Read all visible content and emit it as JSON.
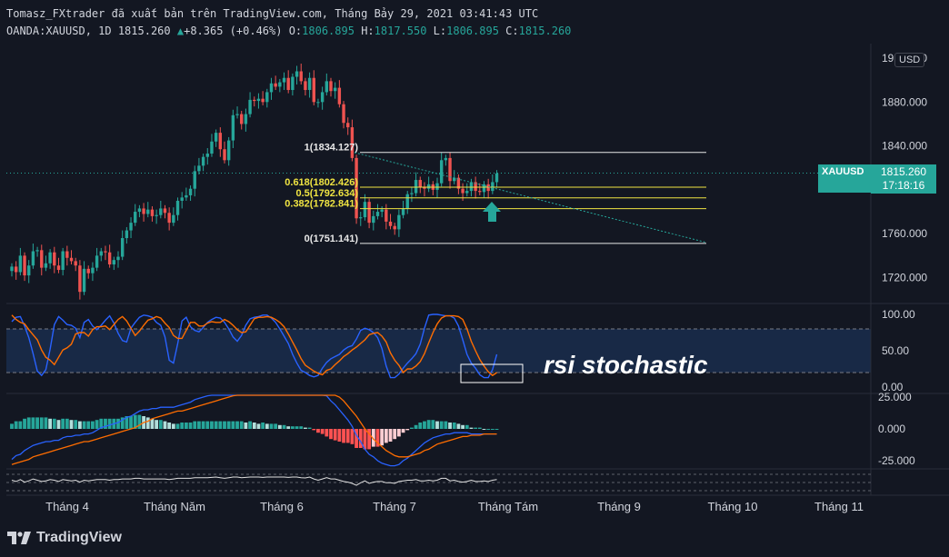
{
  "header": {
    "line1": "Tomasz_FXtrader đã xuất bản trên TradingView.com, Tháng Bảy 29, 2021 03:41:43 UTC",
    "symbol": "OANDA:XAUUSD, 1D",
    "last": "1815.260",
    "change": "+8.365 (+0.46%)",
    "o_label": "O:",
    "o": "1806.895",
    "h_label": "H:",
    "h": "1817.550",
    "l_label": "L:",
    "l": "1806.895",
    "c_label": "C:",
    "c": "1815.260"
  },
  "currency": "USD",
  "price_tag": {
    "symbol": "XAUUSD",
    "price": "1815.260",
    "countdown": "17:18:16"
  },
  "annotation": "rsi stochastic",
  "brand": "TradingView",
  "colors": {
    "bg": "#131722",
    "up": "#26a69a",
    "down": "#ef5350",
    "fib": "#f0e442",
    "k": "#2962ff",
    "d": "#ff6d00"
  },
  "chart_data": [
    {
      "type": "candlestick",
      "symbol": "XAUUSD",
      "interval": "1D",
      "y_ticks": [
        "1920.000",
        "1880.000",
        "1840.000",
        "1800.000",
        "1760.000",
        "1720.000"
      ],
      "ylim": [
        1693,
        1927
      ],
      "x_ticks": [
        "Tháng 4",
        "Tháng Năm",
        "Tháng 6",
        "Tháng 7",
        "Tháng Tám",
        "Tháng 9",
        "Tháng 10",
        "Tháng 11"
      ],
      "last_price": 1815.26,
      "closes": [
        1730,
        1725,
        1740,
        1722,
        1731,
        1744,
        1745,
        1729,
        1733,
        1743,
        1731,
        1727,
        1744,
        1738,
        1735,
        1731,
        1707,
        1728,
        1724,
        1729,
        1740,
        1744,
        1743,
        1732,
        1736,
        1739,
        1756,
        1763,
        1770,
        1780,
        1783,
        1778,
        1782,
        1776,
        1777,
        1783,
        1779,
        1770,
        1777,
        1790,
        1793,
        1795,
        1801,
        1817,
        1822,
        1830,
        1833,
        1844,
        1852,
        1837,
        1827,
        1845,
        1868,
        1869,
        1860,
        1869,
        1882,
        1881,
        1883,
        1880,
        1889,
        1897,
        1894,
        1898,
        1902,
        1891,
        1903,
        1908,
        1899,
        1891,
        1902,
        1880,
        1880,
        1889,
        1899,
        1890,
        1893,
        1878,
        1861,
        1857,
        1829,
        1774,
        1775,
        1789,
        1770,
        1776,
        1780,
        1782,
        1771,
        1767,
        1764,
        1777,
        1783,
        1796,
        1797,
        1809,
        1802,
        1801,
        1805,
        1800,
        1806,
        1827,
        1829,
        1808,
        1811,
        1801,
        1797,
        1799,
        1807,
        1799,
        1798,
        1805,
        1799,
        1807,
        1815
      ],
      "fib_levels": [
        {
          "label": "1(1834.127)",
          "value": 1834.127
        },
        {
          "label": "0.618(1802.426)",
          "value": 1802.426
        },
        {
          "label": "0.5(1792.634)",
          "value": 1792.634
        },
        {
          "label": "0.382(1782.841)",
          "value": 1782.841
        },
        {
          "label": "0(1751.141)",
          "value": 1751.141
        }
      ]
    },
    {
      "type": "line",
      "name": "stoch_rsi",
      "y_ticks": [
        "100.00",
        "50.00",
        "0.00"
      ],
      "ylim": [
        0,
        100
      ],
      "bands": [
        20,
        80
      ],
      "k": [
        90,
        96,
        97,
        84,
        68,
        46,
        22,
        16,
        24,
        52,
        86,
        97,
        92,
        86,
        85,
        81,
        68,
        89,
        93,
        84,
        79,
        85,
        92,
        98,
        88,
        74,
        64,
        62,
        81,
        89,
        96,
        99,
        98,
        96,
        89,
        85,
        69,
        37,
        33,
        60,
        91,
        96,
        83,
        78,
        76,
        82,
        89,
        93,
        96,
        95,
        89,
        80,
        69,
        63,
        71,
        85,
        94,
        96,
        97,
        99,
        99,
        95,
        89,
        80,
        70,
        60,
        45,
        33,
        23,
        20,
        16,
        14,
        16,
        26,
        34,
        39,
        42,
        45,
        51,
        55,
        57,
        66,
        78,
        81,
        79,
        75,
        68,
        53,
        29,
        13,
        13,
        18,
        26,
        33,
        39,
        46,
        59,
        81,
        99,
        100,
        100,
        99,
        98,
        98,
        95,
        84,
        65,
        45,
        33,
        26,
        17,
        13,
        13,
        24,
        45
      ],
      "d": [
        99,
        93,
        89,
        87,
        79,
        72,
        65,
        51,
        41,
        37,
        31,
        41,
        51,
        54,
        59,
        73,
        75,
        75,
        70,
        79,
        83,
        83,
        84,
        79,
        86,
        93,
        97,
        91,
        81,
        71,
        77,
        85,
        92,
        94,
        97,
        95,
        88,
        82,
        71,
        67,
        67,
        78,
        89,
        89,
        84,
        84,
        88,
        90,
        89,
        89,
        93,
        90,
        85,
        79,
        75,
        76,
        85,
        94,
        96,
        96,
        97,
        96,
        93,
        89,
        83,
        73,
        62,
        51,
        39,
        30,
        26,
        22,
        19,
        17,
        23,
        25,
        31,
        36,
        42,
        46,
        51,
        55,
        60,
        65,
        72,
        74,
        75,
        70,
        62,
        47,
        37,
        30,
        20,
        25,
        25,
        29,
        35,
        46,
        61,
        75,
        87,
        95,
        98,
        98,
        98,
        97,
        93,
        80,
        63,
        50,
        38,
        29,
        21,
        16,
        20
      ]
    },
    {
      "type": "line",
      "name": "macd",
      "y_ticks": [
        "25.000",
        "0.000",
        "-25.000"
      ],
      "ylim": [
        -30,
        25
      ],
      "macd": [
        -24,
        -21,
        -20,
        -17,
        -15,
        -13,
        -12,
        -11,
        -10,
        -10,
        -9,
        -9,
        -7,
        -6,
        -6,
        -5,
        -5,
        -4,
        -4,
        -3,
        -1,
        1,
        2,
        3,
        4,
        5,
        7,
        9,
        10,
        12,
        14,
        15,
        15,
        16,
        16,
        17,
        17,
        17,
        17,
        18,
        19,
        20,
        21,
        23,
        24,
        25,
        26,
        27,
        28,
        29,
        30,
        31,
        32,
        33,
        34,
        34,
        35,
        35,
        35,
        36,
        36,
        37,
        37,
        37,
        37,
        37,
        37,
        37,
        37,
        36,
        36,
        34,
        31,
        29,
        26,
        22,
        19,
        15,
        11,
        7,
        2,
        -5,
        -10,
        -16,
        -20,
        -22,
        -25,
        -27,
        -28,
        -29,
        -29,
        -28,
        -25,
        -23,
        -20,
        -17,
        -14,
        -11,
        -9,
        -7,
        -6,
        -5,
        -4,
        -4,
        -3,
        -3,
        -3,
        -3,
        -4,
        -4,
        -4,
        -4,
        -4,
        -4,
        -4
      ],
      "signal": [
        -28,
        -27,
        -26,
        -25,
        -24,
        -22,
        -21,
        -20,
        -19,
        -18,
        -17,
        -16,
        -15,
        -14,
        -13,
        -12,
        -11,
        -10,
        -10,
        -9,
        -8,
        -7,
        -6,
        -5,
        -4,
        -3,
        -2,
        -1,
        0,
        1,
        3,
        5,
        6,
        8,
        9,
        10,
        11,
        12,
        13,
        14,
        14,
        15,
        16,
        17,
        18,
        19,
        20,
        21,
        22,
        23,
        24,
        25,
        26,
        27,
        28,
        29,
        29,
        30,
        31,
        31,
        32,
        33,
        33,
        34,
        34,
        35,
        35,
        35,
        35,
        35,
        35,
        35,
        34,
        33,
        32,
        30,
        28,
        25,
        22,
        18,
        14,
        10,
        5,
        0,
        -4,
        -8,
        -11,
        -14,
        -17,
        -19,
        -21,
        -22,
        -22,
        -22,
        -21,
        -20,
        -19,
        -17,
        -16,
        -14,
        -12,
        -11,
        -10,
        -9,
        -8,
        -7,
        -6,
        -6,
        -5,
        -5,
        -5,
        -4,
        -4,
        -4,
        -4
      ],
      "histogram": [
        4,
        6,
        6,
        8,
        9,
        9,
        9,
        9,
        9,
        8,
        8,
        7,
        8,
        8,
        7,
        7,
        6,
        6,
        6,
        6,
        7,
        8,
        8,
        8,
        8,
        8,
        9,
        10,
        10,
        11,
        11,
        10,
        9,
        8,
        7,
        7,
        6,
        5,
        4,
        4,
        5,
        5,
        5,
        6,
        6,
        6,
        6,
        6,
        6,
        6,
        6,
        6,
        6,
        6,
        6,
        5,
        6,
        5,
        4,
        5,
        4,
        4,
        4,
        3,
        3,
        2,
        2,
        2,
        2,
        1,
        1,
        -1,
        -3,
        -4,
        -6,
        -8,
        -9,
        -10,
        -11,
        -11,
        -12,
        -15,
        -15,
        -16,
        -16,
        -14,
        -14,
        -13,
        -11,
        -10,
        -8,
        -6,
        -3,
        -1,
        1,
        3,
        5,
        6,
        7,
        7,
        6,
        6,
        6,
        5,
        5,
        4,
        3,
        3,
        1,
        1,
        1,
        0,
        0,
        0,
        0
      ]
    },
    {
      "type": "line",
      "name": "oscillator",
      "values": [
        0.5,
        0.3,
        0.6,
        0.2,
        0.4,
        0.7,
        0.5,
        0.3,
        0.4,
        0.6,
        0.5,
        0.3,
        0.6,
        0.5,
        0.4,
        0.5,
        0.2,
        0.5,
        0.4,
        0.5,
        0.6,
        0.6,
        0.6,
        0.5,
        0.6,
        0.6,
        0.7,
        0.7,
        0.7,
        0.8,
        0.8,
        0.7,
        0.7,
        0.7,
        0.7,
        0.7,
        0.7,
        0.6,
        0.7,
        0.8,
        0.8,
        0.8,
        0.8,
        0.9,
        0.9,
        0.9,
        0.9,
        0.95,
        1.0,
        0.9,
        0.8,
        0.9,
        1.0,
        1.0,
        0.9,
        0.95,
        1.0,
        1.0,
        1.0,
        0.95,
        1.0,
        1.0,
        1.0,
        1.0,
        1.0,
        0.95,
        1.0,
        1.0,
        0.9,
        0.85,
        1.0,
        0.7,
        0.5,
        0.7,
        0.9,
        0.7,
        0.7,
        0.5,
        0.3,
        0.2,
        0.0,
        -0.3,
        0.1,
        0.4,
        0.0,
        0.2,
        0.3,
        0.3,
        0.1,
        0.1,
        0.0,
        0.3,
        0.4,
        0.5,
        0.5,
        0.6,
        0.4,
        0.4,
        0.5,
        0.4,
        0.5,
        0.8,
        0.8,
        0.4,
        0.5,
        0.3,
        0.2,
        0.3,
        0.5,
        0.3,
        0.3,
        0.4,
        0.3,
        0.5,
        0.6
      ]
    }
  ]
}
